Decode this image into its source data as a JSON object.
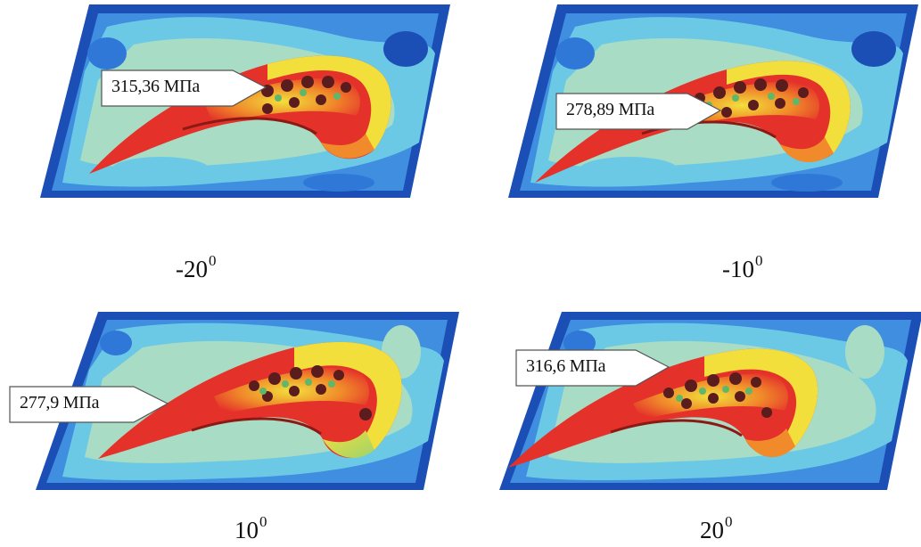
{
  "panels": [
    {
      "angle_value": "-20",
      "angle_degree": "0",
      "stress_label": "315,36 МПа"
    },
    {
      "angle_value": "-10",
      "angle_degree": "0",
      "stress_label": "278,89 МПа"
    },
    {
      "angle_value": "10",
      "angle_degree": "0",
      "stress_label": "277,9 МПа"
    },
    {
      "angle_value": "20",
      "angle_degree": "0",
      "stress_label": "316,6 МПа"
    }
  ],
  "colors": {
    "plate_dark_blue": "#1c4fb6",
    "plate_mid_blue": "#3f8ee0",
    "plate_cyan": "#6cc9e6",
    "plate_light_green": "#a9dcc4",
    "blade_red": "#e4312a",
    "blade_orange": "#f08a2a",
    "blade_yellow": "#f2df3c",
    "blade_green": "#5fb86a",
    "blade_dark": "#5a1c1c"
  }
}
